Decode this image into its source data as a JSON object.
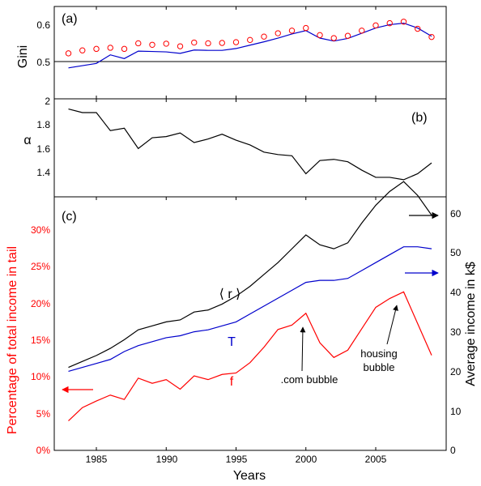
{
  "chart_data": [
    {
      "panel": "(a)",
      "type": "line",
      "ylabel": "Gini",
      "xlim": [
        1982,
        2010
      ],
      "ylim": [
        0.4,
        0.65
      ],
      "yticks": [
        "0.6",
        "0.5"
      ],
      "hline": 0.5,
      "series": [
        {
          "color": "#0000cc",
          "marker": "line",
          "x": [
            1983,
            1984,
            1985,
            1986,
            1987,
            1988,
            1989,
            1990,
            1991,
            1992,
            1993,
            1994,
            1995,
            1996,
            1997,
            1998,
            1999,
            2000,
            2001,
            2002,
            2003,
            2004,
            2005,
            2006,
            2007,
            2008,
            2009
          ],
          "values": [
            0.483,
            0.489,
            0.495,
            0.518,
            0.508,
            0.528,
            0.527,
            0.526,
            0.522,
            0.531,
            0.53,
            0.53,
            0.535,
            0.544,
            0.553,
            0.563,
            0.574,
            0.583,
            0.563,
            0.555,
            0.562,
            0.576,
            0.59,
            0.599,
            0.603,
            0.59,
            0.568
          ]
        },
        {
          "color": "#ff0000",
          "marker": "circle",
          "x": [
            1983,
            1984,
            1985,
            1986,
            1987,
            1988,
            1989,
            1990,
            1991,
            1992,
            1993,
            1994,
            1995,
            1996,
            1997,
            1998,
            1999,
            2000,
            2001,
            2002,
            2003,
            2004,
            2005,
            2006,
            2007,
            2008,
            2009
          ],
          "values": [
            0.522,
            0.53,
            0.534,
            0.537,
            0.534,
            0.549,
            0.545,
            0.548,
            0.541,
            0.551,
            0.549,
            0.55,
            0.552,
            0.558,
            0.567,
            0.576,
            0.583,
            0.59,
            0.571,
            0.563,
            0.569,
            0.583,
            0.597,
            0.603,
            0.607,
            0.588,
            0.566
          ]
        }
      ]
    },
    {
      "panel": "(b)",
      "type": "line",
      "ylabel": "α",
      "xlim": [
        1982,
        2010
      ],
      "ylim": [
        1.2,
        2.0
      ],
      "yticks": [
        "2",
        "1.8",
        "1.6",
        "1.4"
      ],
      "series": [
        {
          "color": "#000000",
          "x": [
            1983,
            1984,
            1985,
            1986,
            1987,
            1988,
            1989,
            1990,
            1991,
            1992,
            1993,
            1994,
            1995,
            1996,
            1997,
            1998,
            1999,
            2000,
            2001,
            2002,
            2003,
            2004,
            2005,
            2006,
            2007,
            2008,
            2009
          ],
          "values": [
            1.93,
            1.9,
            1.9,
            1.75,
            1.77,
            1.6,
            1.69,
            1.7,
            1.73,
            1.65,
            1.68,
            1.72,
            1.67,
            1.63,
            1.57,
            1.55,
            1.54,
            1.39,
            1.5,
            1.51,
            1.49,
            1.42,
            1.36,
            1.36,
            1.34,
            1.39,
            1.48
          ]
        }
      ]
    },
    {
      "panel": "(c)",
      "type": "line",
      "xlabel": "Years",
      "ylabel_left": "Percentage of total income in tail",
      "ylabel_right": "Average income in k$",
      "xticks": [
        "1985",
        "1990",
        "1995",
        "2000",
        "2005"
      ],
      "yticks_left": [
        "0%",
        "5%",
        "10%",
        "15%",
        "20%",
        "25%",
        "30%"
      ],
      "yticks_right": [
        "0",
        "10",
        "20",
        "30",
        "40",
        "50",
        "60"
      ],
      "ylim_left": [
        0,
        35
      ],
      "ylim_right": [
        0,
        65
      ],
      "series": [
        {
          "name": "⟨ r ⟩",
          "color": "#000000",
          "axis": "right",
          "x": [
            1983,
            1984,
            1985,
            1986,
            1987,
            1988,
            1989,
            1990,
            1991,
            1992,
            1993,
            1994,
            1995,
            1996,
            1997,
            1998,
            1999,
            2000,
            2001,
            2002,
            2003,
            2004,
            2005,
            2006,
            2007,
            2008,
            2009
          ],
          "values": [
            21.0,
            22.5,
            24.0,
            25.8,
            28.0,
            30.5,
            31.5,
            32.5,
            33.0,
            35.0,
            35.5,
            37.0,
            39.0,
            41.5,
            44.5,
            47.5,
            51.0,
            54.5,
            52.0,
            51.0,
            52.5,
            57.5,
            62.0,
            65.5,
            68.0,
            64.5,
            59.5
          ]
        },
        {
          "name": "T",
          "color": "#0000cc",
          "axis": "right",
          "x": [
            1983,
            1984,
            1985,
            1986,
            1987,
            1988,
            1989,
            1990,
            1991,
            1992,
            1993,
            1994,
            1995,
            1996,
            1997,
            1998,
            1999,
            2000,
            2001,
            2002,
            2003,
            2004,
            2005,
            2006,
            2007,
            2008,
            2009
          ],
          "values": [
            20.0,
            21.0,
            22.0,
            23.0,
            25.0,
            26.5,
            27.5,
            28.5,
            29.0,
            30.0,
            30.5,
            31.5,
            32.5,
            34.5,
            36.5,
            38.5,
            40.5,
            42.5,
            43.0,
            43.0,
            43.5,
            45.5,
            47.5,
            49.5,
            51.5,
            51.5,
            51.0
          ]
        },
        {
          "name": "f",
          "color": "#ff0000",
          "axis": "left",
          "x": [
            1983,
            1984,
            1985,
            1986,
            1987,
            1988,
            1989,
            1990,
            1991,
            1992,
            1993,
            1994,
            1995,
            1996,
            1997,
            1998,
            1999,
            2000,
            2001,
            2002,
            2003,
            2004,
            2005,
            2006,
            2007,
            2008,
            2009
          ],
          "values": [
            4.0,
            5.8,
            6.7,
            7.5,
            6.9,
            9.8,
            9.1,
            9.6,
            8.3,
            10.1,
            9.6,
            10.3,
            10.5,
            11.9,
            14.0,
            16.4,
            17.0,
            18.6,
            14.6,
            12.6,
            13.6,
            16.5,
            19.4,
            20.6,
            21.5,
            17.2,
            12.9
          ]
        }
      ],
      "annotations": [
        {
          "text": ".com bubble",
          "x": 2000
        },
        {
          "text": "housing",
          "x": 2007
        },
        {
          "text": "bubble",
          "x": 2007
        }
      ]
    }
  ]
}
